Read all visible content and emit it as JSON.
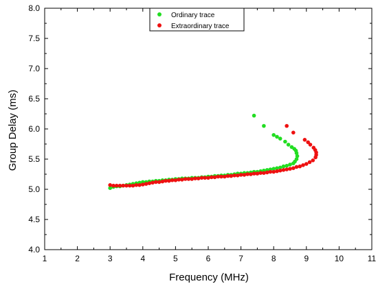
{
  "chart_data": {
    "type": "scatter",
    "xlabel": "Frequency (MHz)",
    "ylabel": "Group Delay (ms)",
    "xlim": [
      1,
      11
    ],
    "ylim": [
      4.0,
      8.0
    ],
    "x_ticks": [
      1,
      2,
      3,
      4,
      5,
      6,
      7,
      8,
      9,
      10,
      11
    ],
    "y_ticks": [
      "4.0",
      "4.5",
      "5.0",
      "5.5",
      "6.0",
      "6.5",
      "7.0",
      "7.5",
      "8.0"
    ],
    "grid": false,
    "legend_position": "top-center",
    "series": [
      {
        "name": "Ordinary trace",
        "color": "#22dd22",
        "points": [
          [
            3.0,
            5.02
          ],
          [
            3.1,
            5.04
          ],
          [
            3.2,
            5.05
          ],
          [
            3.3,
            5.05
          ],
          [
            3.4,
            5.06
          ],
          [
            3.5,
            5.07
          ],
          [
            3.6,
            5.08
          ],
          [
            3.7,
            5.09
          ],
          [
            3.8,
            5.1
          ],
          [
            3.9,
            5.11
          ],
          [
            4.0,
            5.12
          ],
          [
            4.1,
            5.12
          ],
          [
            4.2,
            5.13
          ],
          [
            4.3,
            5.13
          ],
          [
            4.4,
            5.14
          ],
          [
            4.5,
            5.14
          ],
          [
            4.6,
            5.15
          ],
          [
            4.7,
            5.15
          ],
          [
            4.8,
            5.16
          ],
          [
            4.9,
            5.16
          ],
          [
            5.0,
            5.17
          ],
          [
            5.1,
            5.17
          ],
          [
            5.2,
            5.18
          ],
          [
            5.3,
            5.18
          ],
          [
            5.4,
            5.18
          ],
          [
            5.5,
            5.19
          ],
          [
            5.6,
            5.19
          ],
          [
            5.7,
            5.19
          ],
          [
            5.8,
            5.2
          ],
          [
            5.9,
            5.2
          ],
          [
            6.0,
            5.21
          ],
          [
            6.1,
            5.21
          ],
          [
            6.2,
            5.22
          ],
          [
            6.3,
            5.22
          ],
          [
            6.4,
            5.23
          ],
          [
            6.5,
            5.23
          ],
          [
            6.6,
            5.24
          ],
          [
            6.7,
            5.24
          ],
          [
            6.8,
            5.25
          ],
          [
            6.9,
            5.26
          ],
          [
            7.0,
            5.26
          ],
          [
            7.1,
            5.27
          ],
          [
            7.2,
            5.27
          ],
          [
            7.3,
            5.28
          ],
          [
            7.4,
            5.29
          ],
          [
            7.5,
            5.29
          ],
          [
            7.6,
            5.3
          ],
          [
            7.7,
            5.31
          ],
          [
            7.8,
            5.32
          ],
          [
            7.9,
            5.33
          ],
          [
            8.0,
            5.34
          ],
          [
            8.1,
            5.35
          ],
          [
            8.2,
            5.36
          ],
          [
            8.3,
            5.38
          ],
          [
            8.4,
            5.39
          ],
          [
            8.5,
            5.41
          ],
          [
            8.6,
            5.43
          ],
          [
            8.65,
            5.46
          ],
          [
            8.7,
            5.5
          ],
          [
            8.72,
            5.55
          ],
          [
            8.7,
            5.6
          ],
          [
            8.68,
            5.64
          ],
          [
            8.63,
            5.67
          ],
          [
            8.55,
            5.7
          ],
          [
            8.45,
            5.74
          ],
          [
            8.35,
            5.79
          ],
          [
            8.2,
            5.84
          ],
          [
            8.1,
            5.87
          ],
          [
            8.0,
            5.9
          ],
          [
            7.7,
            6.05
          ],
          [
            7.4,
            6.22
          ]
        ]
      },
      {
        "name": "Extraordinary trace",
        "color": "#ee1111",
        "points": [
          [
            3.0,
            5.07
          ],
          [
            3.1,
            5.06
          ],
          [
            3.2,
            5.06
          ],
          [
            3.3,
            5.06
          ],
          [
            3.4,
            5.06
          ],
          [
            3.5,
            5.06
          ],
          [
            3.6,
            5.06
          ],
          [
            3.7,
            5.06
          ],
          [
            3.8,
            5.07
          ],
          [
            3.9,
            5.07
          ],
          [
            4.0,
            5.08
          ],
          [
            4.1,
            5.09
          ],
          [
            4.2,
            5.1
          ],
          [
            4.3,
            5.11
          ],
          [
            4.4,
            5.12
          ],
          [
            4.5,
            5.12
          ],
          [
            4.6,
            5.13
          ],
          [
            4.7,
            5.14
          ],
          [
            4.8,
            5.14
          ],
          [
            4.9,
            5.15
          ],
          [
            5.0,
            5.15
          ],
          [
            5.1,
            5.16
          ],
          [
            5.2,
            5.16
          ],
          [
            5.3,
            5.17
          ],
          [
            5.4,
            5.17
          ],
          [
            5.5,
            5.17
          ],
          [
            5.6,
            5.18
          ],
          [
            5.7,
            5.18
          ],
          [
            5.8,
            5.19
          ],
          [
            5.9,
            5.19
          ],
          [
            6.0,
            5.19
          ],
          [
            6.1,
            5.2
          ],
          [
            6.2,
            5.2
          ],
          [
            6.3,
            5.21
          ],
          [
            6.4,
            5.21
          ],
          [
            6.5,
            5.21
          ],
          [
            6.6,
            5.22
          ],
          [
            6.7,
            5.22
          ],
          [
            6.8,
            5.23
          ],
          [
            6.9,
            5.23
          ],
          [
            7.0,
            5.24
          ],
          [
            7.1,
            5.24
          ],
          [
            7.2,
            5.25
          ],
          [
            7.3,
            5.25
          ],
          [
            7.4,
            5.26
          ],
          [
            7.5,
            5.26
          ],
          [
            7.6,
            5.27
          ],
          [
            7.7,
            5.27
          ],
          [
            7.8,
            5.28
          ],
          [
            7.9,
            5.29
          ],
          [
            8.0,
            5.29
          ],
          [
            8.1,
            5.3
          ],
          [
            8.2,
            5.31
          ],
          [
            8.3,
            5.32
          ],
          [
            8.4,
            5.33
          ],
          [
            8.5,
            5.34
          ],
          [
            8.6,
            5.35
          ],
          [
            8.7,
            5.37
          ],
          [
            8.8,
            5.38
          ],
          [
            8.9,
            5.4
          ],
          [
            9.0,
            5.42
          ],
          [
            9.1,
            5.45
          ],
          [
            9.2,
            5.48
          ],
          [
            9.28,
            5.53
          ],
          [
            9.3,
            5.57
          ],
          [
            9.3,
            5.61
          ],
          [
            9.27,
            5.65
          ],
          [
            9.22,
            5.69
          ],
          [
            9.12,
            5.74
          ],
          [
            9.05,
            5.78
          ],
          [
            8.95,
            5.82
          ],
          [
            8.6,
            5.94
          ],
          [
            8.4,
            6.05
          ]
        ]
      }
    ]
  }
}
